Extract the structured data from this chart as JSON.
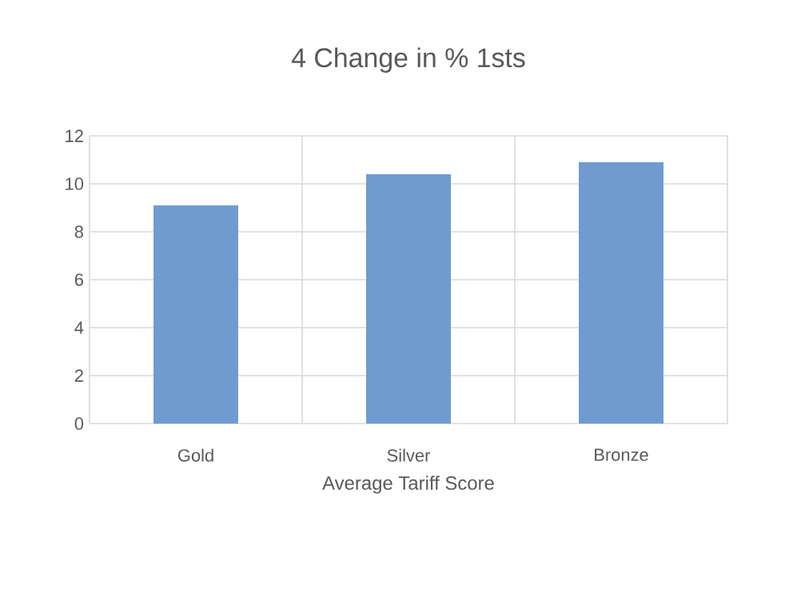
{
  "chart_data": {
    "type": "bar",
    "title": "4 Change in % 1sts",
    "xlabel": "Average Tariff Score",
    "categories": [
      "Gold",
      "Silver",
      "Bronze"
    ],
    "values": [
      9.1,
      10.4,
      10.9
    ],
    "color": "#6f9bd1",
    "ylim": [
      0,
      12
    ],
    "yticks": [
      0,
      2,
      4,
      6,
      8,
      10,
      12
    ],
    "grid": true
  }
}
